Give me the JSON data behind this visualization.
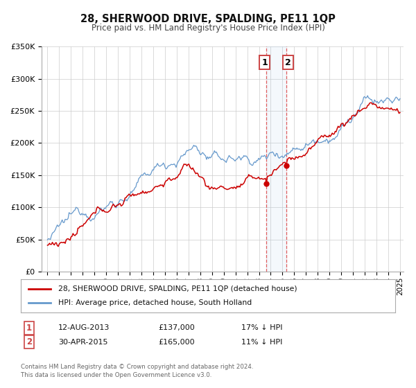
{
  "title": "28, SHERWOOD DRIVE, SPALDING, PE11 1QP",
  "subtitle": "Price paid vs. HM Land Registry's House Price Index (HPI)",
  "ylim": [
    0,
    350000
  ],
  "xlim": [
    1994.5,
    2025.3
  ],
  "yticks": [
    0,
    50000,
    100000,
    150000,
    200000,
    250000,
    300000,
    350000
  ],
  "ytick_labels": [
    "£0",
    "£50K",
    "£100K",
    "£150K",
    "£200K",
    "£250K",
    "£300K",
    "£350K"
  ],
  "xticks": [
    1995,
    1996,
    1997,
    1998,
    1999,
    2000,
    2001,
    2002,
    2003,
    2004,
    2005,
    2006,
    2007,
    2008,
    2009,
    2010,
    2011,
    2012,
    2013,
    2014,
    2015,
    2016,
    2017,
    2018,
    2019,
    2020,
    2021,
    2022,
    2023,
    2024,
    2025
  ],
  "red_line_color": "#cc0000",
  "blue_line_color": "#6699cc",
  "marker1_date": 2013.62,
  "marker1_value": 137000,
  "marker2_date": 2015.33,
  "marker2_value": 165000,
  "vline1_x": 2013.62,
  "vline2_x": 2015.33,
  "legend_label1": "28, SHERWOOD DRIVE, SPALDING, PE11 1QP (detached house)",
  "legend_label2": "HPI: Average price, detached house, South Holland",
  "annotation1_date": "12-AUG-2013",
  "annotation1_price": "£137,000",
  "annotation1_hpi": "17% ↓ HPI",
  "annotation2_date": "30-APR-2015",
  "annotation2_price": "£165,000",
  "annotation2_hpi": "11% ↓ HPI",
  "footer1": "Contains HM Land Registry data © Crown copyright and database right 2024.",
  "footer2": "This data is licensed under the Open Government Licence v3.0.",
  "background_color": "#ffffff",
  "grid_color": "#cccccc"
}
